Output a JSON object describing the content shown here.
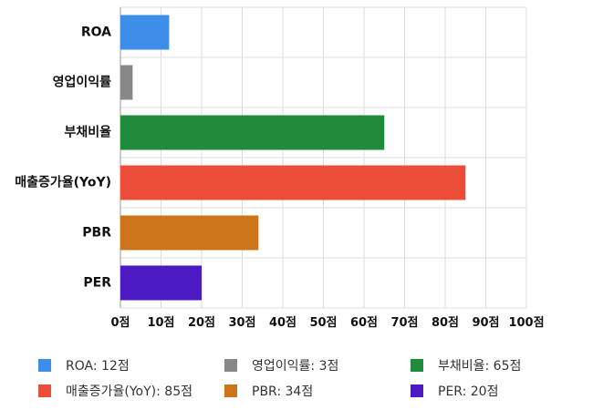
{
  "chart_data": {
    "type": "bar",
    "orientation": "horizontal",
    "categories": [
      "ROA",
      "영업이익률",
      "부채비율",
      "매출증가율(YoY)",
      "PBR",
      "PER"
    ],
    "values": [
      12,
      3,
      65,
      85,
      34,
      20
    ],
    "colors": [
      "#3d8ee8",
      "#888888",
      "#1e8c3a",
      "#eb4d38",
      "#cc7419",
      "#4c1ac2"
    ],
    "xlim": [
      0,
      100
    ],
    "xticks": [
      "0점",
      "10점",
      "20점",
      "30점",
      "40점",
      "50점",
      "60점",
      "70점",
      "80점",
      "90점",
      "100점"
    ],
    "grid": true,
    "legend_position": "bottom",
    "legend": [
      {
        "label": "ROA: 12점",
        "color": "#3d8ee8"
      },
      {
        "label": "영업이익률: 3점",
        "color": "#888888"
      },
      {
        "label": "부채비율: 65점",
        "color": "#1e8c3a"
      },
      {
        "label": "매출증가율(YoY): 85점",
        "color": "#eb4d38"
      },
      {
        "label": "PBR: 34점",
        "color": "#cc7419"
      },
      {
        "label": "PER: 20점",
        "color": "#4c1ac2"
      }
    ]
  }
}
